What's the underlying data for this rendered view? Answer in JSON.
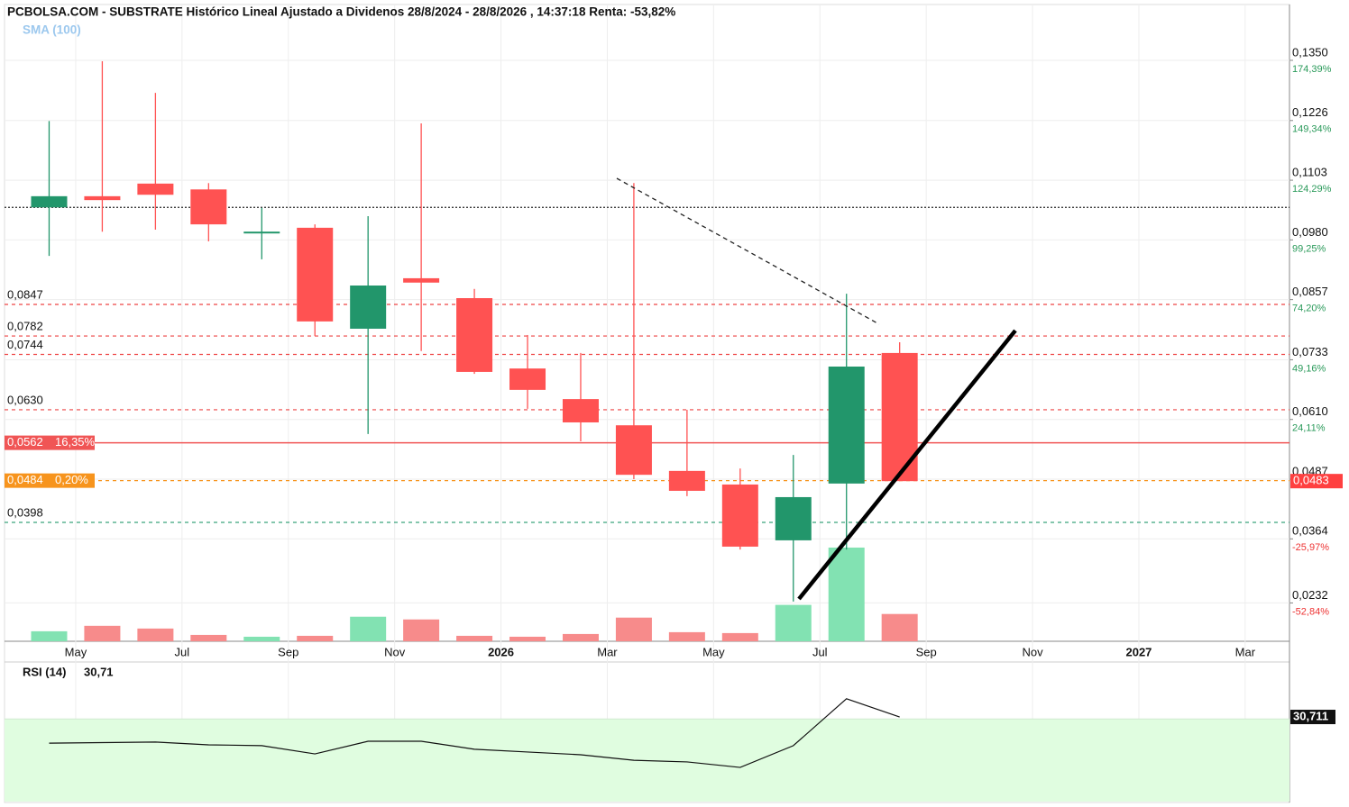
{
  "chart_data": {
    "type": "candlestick",
    "title": "PCBOLSA.COM - SUBSTRATE Histórico Lineal Ajustado a Dividenos 28/8/2024 - 28/8/2026 , 14:37:18 Renta: -53,82%",
    "legend": "SMA (100)",
    "categories": [
      null,
      "May",
      null,
      "Jul",
      null,
      "Sep",
      null,
      "Nov",
      null,
      "2026",
      null,
      "Mar",
      null,
      "May",
      null,
      "Jul",
      null,
      "Sep",
      null,
      "Nov",
      null,
      "2027",
      null,
      "Mar"
    ],
    "open": [
      0.1047,
      0.107,
      0.1096,
      0.1084,
      0.0994,
      0.1005,
      0.0797,
      0.0901,
      0.086,
      0.0715,
      0.0652,
      0.0598,
      0.0504,
      0.0476,
      0.0361,
      0.0478,
      0.0747,
      null,
      null,
      null,
      null,
      null,
      null,
      null
    ],
    "high": [
      0.1225,
      0.1348,
      0.1283,
      0.1097,
      0.1046,
      0.1012,
      0.1029,
      0.122,
      0.0879,
      0.0784,
      0.0747,
      0.1097,
      0.063,
      0.0509,
      0.0537,
      0.0869,
      0.0769,
      null,
      null,
      null,
      null,
      null,
      null,
      null
    ],
    "low": [
      0.0947,
      0.0997,
      0.1001,
      0.0977,
      0.094,
      0.0782,
      0.058,
      0.0751,
      0.0704,
      0.0632,
      0.0565,
      0.0487,
      0.0452,
      0.0342,
      0.0235,
      0.0342,
      0.0483,
      null,
      null,
      null,
      null,
      null,
      null,
      null
    ],
    "close": [
      0.107,
      0.1062,
      0.1073,
      0.1012,
      0.0997,
      0.0812,
      0.0886,
      0.0892,
      0.0708,
      0.0671,
      0.0604,
      0.0496,
      0.0463,
      0.0348,
      0.045,
      0.0719,
      0.0483,
      null,
      null,
      null,
      null,
      null,
      null,
      null
    ],
    "volume": [
      11,
      17,
      14,
      7,
      5,
      6,
      27,
      24,
      6,
      5,
      8,
      26,
      10,
      9,
      40,
      103,
      30,
      null,
      null,
      null,
      null,
      null,
      null,
      null
    ],
    "volume_ylim": [
      0,
      700
    ],
    "up_color": "#22966b",
    "down_color": "#ff5252",
    "volume_up_color": "#82e2b2",
    "volume_down_color": "#f78b8b",
    "ylim": [
      0.0153,
      0.1465
    ],
    "yticks": [
      {
        "value": 0.135,
        "label": "0,1350"
      },
      {
        "value": 0.1226,
        "label": "0,1226"
      },
      {
        "value": 0.1103,
        "label": "0,1103"
      },
      {
        "value": 0.098,
        "label": "0,0980"
      },
      {
        "value": 0.0857,
        "label": "0,0857"
      },
      {
        "value": 0.0733,
        "label": "0,0733"
      },
      {
        "value": 0.061,
        "label": "0,0610"
      },
      {
        "value": 0.0487,
        "label": "0,0487"
      },
      {
        "value": 0.0364,
        "label": "0,0364"
      },
      {
        "value": 0.0232,
        "label": "0,0232"
      }
    ],
    "ytick_changes": [
      "174,39%",
      "149,34%",
      "124,29%",
      "99,25%",
      "74,20%",
      "49,16%",
      "24,11%",
      null,
      "-25,97%",
      "-52,84%"
    ],
    "levels": [
      {
        "value": 0.1047,
        "color": "#222222",
        "style": "dotted"
      },
      {
        "value": 0.0847,
        "label": "0,0847",
        "color": "#ee4444",
        "style": "dashed"
      },
      {
        "value": 0.0782,
        "label": "0,0782",
        "color": "#ee4444",
        "style": "dashed"
      },
      {
        "value": 0.0744,
        "label": "0,0744",
        "color": "#ee4444",
        "style": "dashed"
      },
      {
        "value": 0.063,
        "label": "0,0630",
        "color": "#ee4444",
        "style": "dashed"
      },
      {
        "value": 0.0562,
        "label": "0,0562",
        "change": "16,35%",
        "color": "#f05555",
        "style": "solid"
      },
      {
        "value": 0.0484,
        "label": "0,0484",
        "change": "0,20%",
        "color": "#f7941d",
        "style": "dashed"
      },
      {
        "value": 0.0398,
        "label": "0,0398",
        "color": "#3aa37c",
        "style": "dashed"
      }
    ],
    "last_price": {
      "value": 0.0483,
      "label": "0,0483",
      "color": "#ff4040"
    },
    "rsi": {
      "title": "RSI (14)",
      "last_label": "30,71",
      "badge": "30,711",
      "values": [
        21.2,
        21.4,
        21.6,
        20.6,
        20.3,
        17.3,
        21.9,
        21.9,
        19.0,
        18.0,
        17.0,
        15.0,
        14.4,
        12.4,
        20.3,
        37.3,
        30.71,
        null,
        null,
        null,
        null,
        null,
        null,
        null
      ],
      "ylim": [
        0,
        50
      ],
      "zone": 30,
      "zone_color": "#e0fde0"
    }
  }
}
